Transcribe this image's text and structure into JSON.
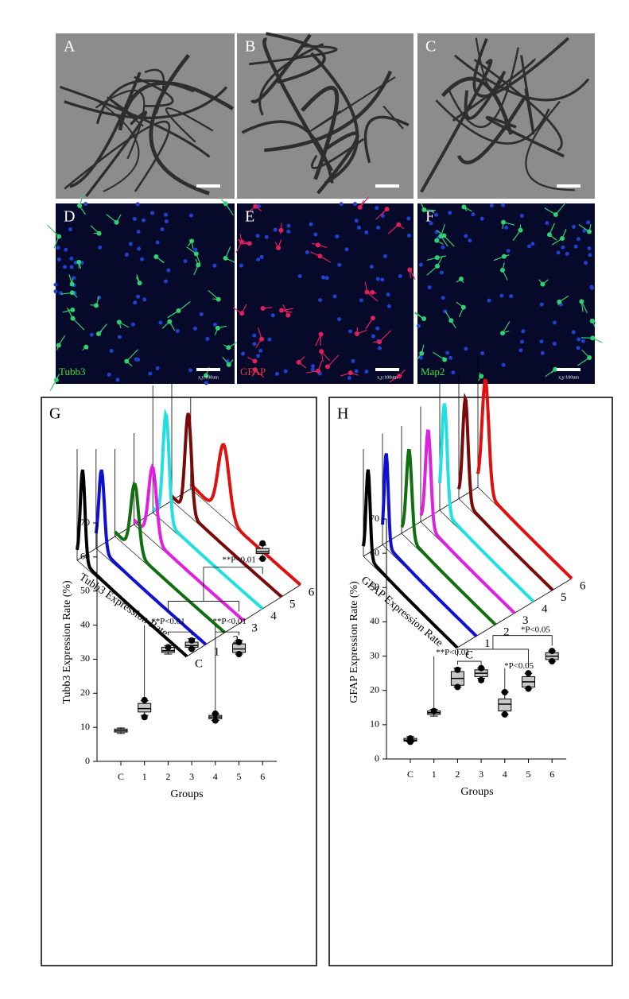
{
  "panels": [
    {
      "label": "A"
    },
    {
      "label": "B"
    },
    {
      "label": "C"
    },
    {
      "label": "D",
      "stain": "Tubb3",
      "scale": "x,y:100um"
    },
    {
      "label": "E",
      "stain": "GFAP",
      "scale": "x,y:100um"
    },
    {
      "label": "F",
      "stain": "Map2",
      "scale": "x,y:100um"
    }
  ],
  "ridgelines": [
    {
      "label": "G",
      "axis_label": "Tubb3 Expression Rate",
      "groups": [
        "C",
        "1",
        "2",
        "3",
        "4",
        "5",
        "6"
      ],
      "colors": [
        "#000000",
        "#1010d0",
        "#107010",
        "#e020e0",
        "#20e0e0",
        "#7a0a0a",
        "#e01010"
      ]
    },
    {
      "label": "H",
      "axis_label": "GFAP Expression Rate",
      "groups": [
        "C",
        "1",
        "2",
        "3",
        "4",
        "5",
        "6"
      ],
      "colors": [
        "#000000",
        "#1010d0",
        "#107010",
        "#e020e0",
        "#20e0e0",
        "#7a0a0a",
        "#e01010"
      ]
    }
  ],
  "chart_data": [
    {
      "type": "box",
      "ylabel": "Tubb3 Expression Rate (%)",
      "xlabel": "Groups",
      "categories": [
        "C",
        "1",
        "2",
        "3",
        "4",
        "5",
        "6"
      ],
      "ylim": [
        0,
        70
      ],
      "yticks": [
        0,
        10,
        20,
        30,
        40,
        50,
        60,
        70
      ],
      "boxes": [
        {
          "min": 8.2,
          "q1": 8.6,
          "median": 9,
          "q3": 9.5,
          "max": 9.8,
          "points": []
        },
        {
          "min": 13.5,
          "q1": 14.5,
          "median": 15.5,
          "q3": 17,
          "max": 17.8,
          "points": [
            13,
            18
          ]
        },
        {
          "min": 31.5,
          "q1": 32,
          "median": 32.5,
          "q3": 33.5,
          "max": 34,
          "points": [
            33.5
          ]
        },
        {
          "min": 33,
          "q1": 33.5,
          "median": 34,
          "q3": 35,
          "max": 36,
          "points": [
            33,
            35.5
          ]
        },
        {
          "min": 12,
          "q1": 12.5,
          "median": 13,
          "q3": 13.5,
          "max": 14,
          "points": [
            12,
            14
          ]
        },
        {
          "min": 31.5,
          "q1": 32,
          "median": 33,
          "q3": 34.5,
          "max": 35.5,
          "points": [
            31.5,
            35
          ]
        },
        {
          "min": 59.5,
          "q1": 61,
          "median": 61.5,
          "q3": 62.5,
          "max": 63.5,
          "points": [
            59.5,
            64
          ]
        }
      ],
      "annotations": [
        "**P<0.01",
        "**P<0.01",
        "**P<0.01"
      ]
    },
    {
      "type": "box",
      "ylabel": "GFAP Expression Rate (%)",
      "xlabel": "Groups",
      "categories": [
        "C",
        "1",
        "2",
        "3",
        "4",
        "5",
        "6"
      ],
      "ylim": [
        0,
        70
      ],
      "yticks": [
        0,
        10,
        20,
        30,
        40,
        50,
        60,
        70
      ],
      "boxes": [
        {
          "min": 5,
          "q1": 5.2,
          "median": 5.5,
          "q3": 6,
          "max": 6.5,
          "points": [
            5,
            6
          ]
        },
        {
          "min": 12.5,
          "q1": 13,
          "median": 13.5,
          "q3": 14,
          "max": 14.5,
          "points": [
            14
          ]
        },
        {
          "min": 21,
          "q1": 21.5,
          "median": 23.5,
          "q3": 25.5,
          "max": 26.5,
          "points": [
            21,
            26
          ]
        },
        {
          "min": 23.5,
          "q1": 24,
          "median": 25,
          "q3": 26,
          "max": 26.5,
          "points": [
            23,
            26.5
          ]
        },
        {
          "min": 13,
          "q1": 14,
          "median": 16,
          "q3": 17.5,
          "max": 19.5,
          "points": [
            13,
            19.5
          ]
        },
        {
          "min": 20.5,
          "q1": 21,
          "median": 22.5,
          "q3": 24,
          "max": 25,
          "points": [
            20.5,
            25
          ]
        },
        {
          "min": 28.5,
          "q1": 29,
          "median": 30,
          "q3": 31,
          "max": 31.5,
          "points": [
            28.5,
            31.5
          ]
        }
      ],
      "annotations": [
        "**P<0.01",
        "*P<0.05",
        "*P<0.05"
      ]
    }
  ]
}
